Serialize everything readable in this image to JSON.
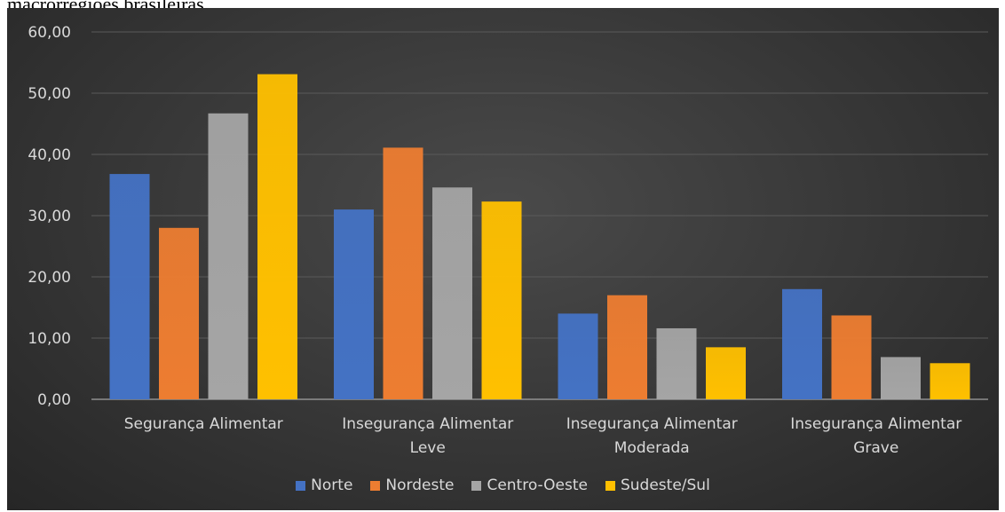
{
  "caption": "macrorregiões brasileiras",
  "chart_data": {
    "type": "bar",
    "title": "",
    "xlabel": "",
    "ylabel": "",
    "ylim": [
      0,
      60
    ],
    "yticks": [
      "0,00",
      "10,00",
      "20,00",
      "30,00",
      "40,00",
      "50,00",
      "60,00"
    ],
    "categories": [
      [
        "Segurança Alimentar"
      ],
      [
        "Insegurança Alimentar",
        "Leve"
      ],
      [
        "Insegurança Alimentar",
        "Moderada"
      ],
      [
        "Insegurança Alimentar",
        "Grave"
      ]
    ],
    "series": [
      {
        "name": "Norte",
        "color": "#4472c4",
        "values": [
          36.8,
          31.0,
          14.0,
          18.0
        ]
      },
      {
        "name": "Nordeste",
        "color": "#ed7d31",
        "values": [
          28.0,
          41.1,
          17.0,
          13.7
        ]
      },
      {
        "name": "Centro-Oeste",
        "color": "#a5a5a5",
        "values": [
          46.7,
          34.6,
          11.6,
          6.9
        ]
      },
      {
        "name": "Sudeste/Sul",
        "color": "#ffc000",
        "values": [
          53.1,
          32.3,
          8.5,
          5.9
        ]
      }
    ],
    "grid": true,
    "legend_position": "bottom"
  }
}
